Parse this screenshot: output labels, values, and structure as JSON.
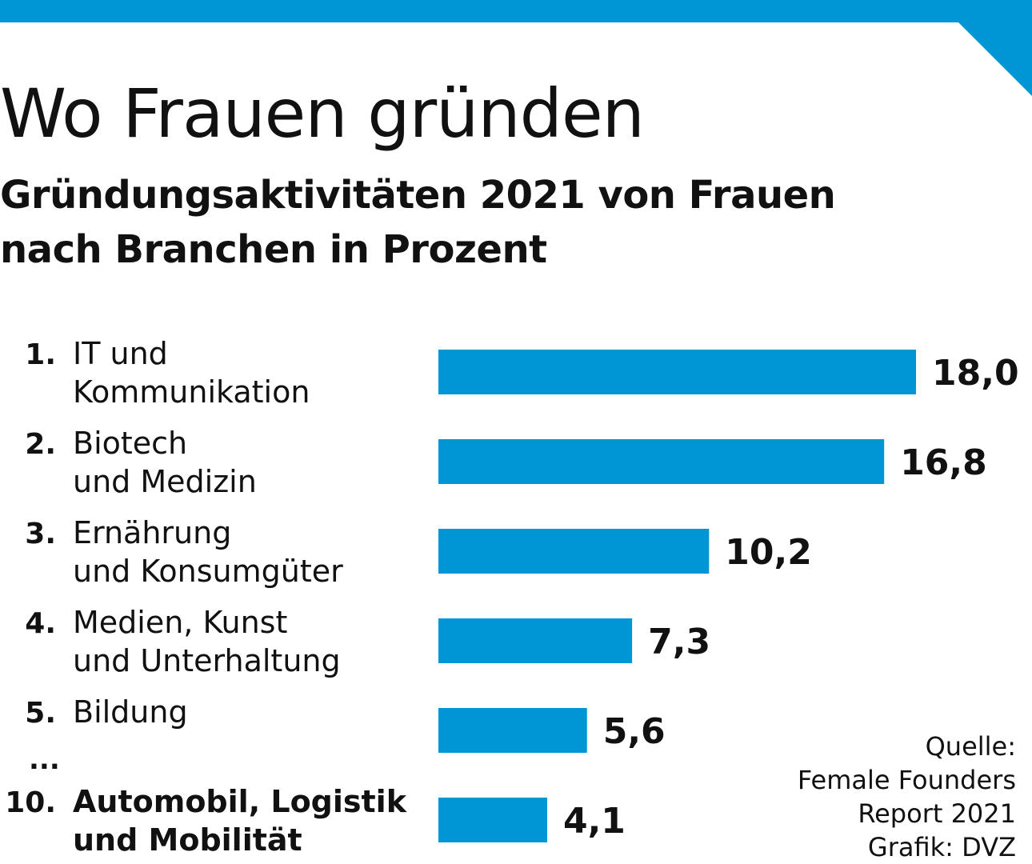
{
  "title": "Wo Frauen gründen",
  "subtitle_lines": [
    "Gründungsaktivitäten 2021 von Frauen",
    "nach Branchen in Prozent"
  ],
  "ellipsis": "...",
  "source": [
    "Quelle:",
    "Female Founders",
    "Report 2021",
    "Grafik: DVZ"
  ],
  "colors": {
    "accent": "#0096d6",
    "text": "#111111"
  },
  "chart_data": {
    "type": "bar",
    "orientation": "horizontal",
    "xlim": [
      0,
      18.0
    ],
    "grid": false,
    "legend": "none",
    "categories": [
      {
        "rank": "1.",
        "lines": [
          "IT und",
          "Kommunikation"
        ],
        "emphasis": false
      },
      {
        "rank": "2.",
        "lines": [
          "Biotech",
          "und Medizin"
        ],
        "emphasis": false
      },
      {
        "rank": "3.",
        "lines": [
          "Ernährung",
          "und Konsumgüter"
        ],
        "emphasis": false
      },
      {
        "rank": "4.",
        "lines": [
          "Medien, Kunst",
          "und Unterhaltung"
        ],
        "emphasis": false
      },
      {
        "rank": "5.",
        "lines": [
          "Bildung"
        ],
        "emphasis": false
      },
      {
        "rank": "10.",
        "lines": [
          "Automobil, Logistik",
          "und Mobilität"
        ],
        "emphasis": true
      }
    ],
    "values": [
      18.0,
      16.8,
      10.2,
      7.3,
      5.6,
      4.1
    ],
    "value_labels": [
      "18,0",
      "16,8",
      "10,2",
      "7,3",
      "5,6",
      "4,1"
    ]
  }
}
